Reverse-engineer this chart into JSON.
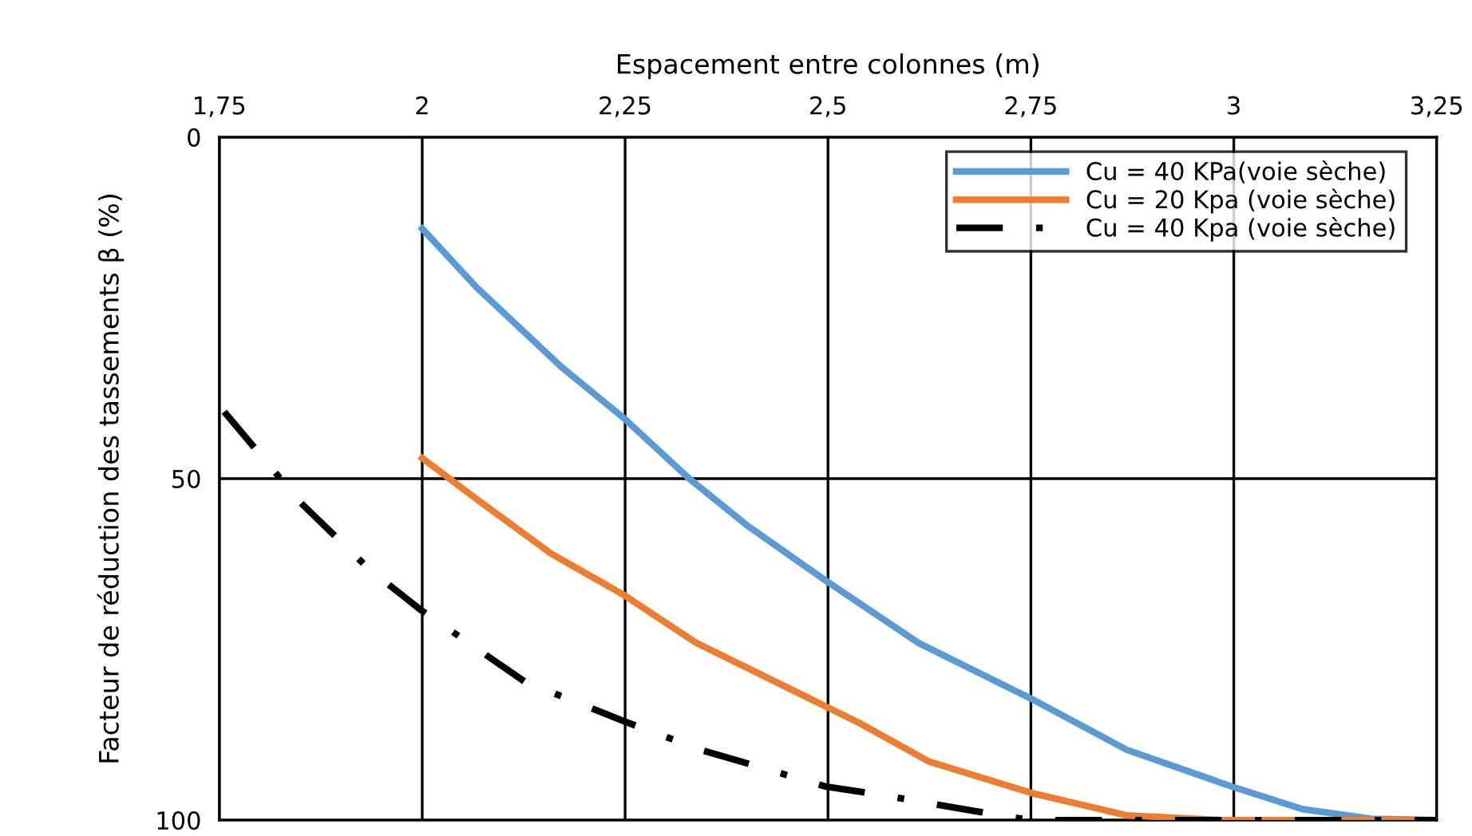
{
  "chart_data": {
    "type": "line",
    "xlabel": "Espacement entre colonnes (m)",
    "ylabel": "Facteur de réduction des tassements β (%)",
    "xlim": [
      1.75,
      3.25
    ],
    "xticks": [
      {
        "value": 1.75,
        "label": "1,75"
      },
      2,
      {
        "value": 2.25,
        "label": "2,25"
      },
      {
        "value": 2.5,
        "label": "2,5"
      },
      {
        "value": 2.75,
        "label": "2,75"
      },
      3,
      {
        "value": 3.25,
        "label": "3,25"
      }
    ],
    "ylim": [
      100,
      0
    ],
    "yticks": [
      0,
      50,
      100
    ],
    "grid": true,
    "legend": "top right",
    "series": [
      {
        "name": "Cu = 40 KPa(voie sèche)",
        "color": "#5b9bd5",
        "line_style": "solid",
        "x": [
          2.0,
          2.067,
          2.171,
          2.248,
          2.329,
          2.402,
          2.498,
          2.612,
          2.75,
          2.868,
          2.998,
          3.085,
          3.169,
          3.248
        ],
        "values": [
          13.4,
          22,
          33.6,
          41.1,
          50,
          57,
          65,
          74.1,
          82.2,
          89.7,
          95.1,
          98.4,
          99.8,
          100
        ]
      },
      {
        "name": "Cu = 20 Kpa (voie sèche)",
        "color": "#ed7d31",
        "line_style": "solid",
        "x": [
          2.0,
          2.067,
          2.159,
          2.248,
          2.337,
          2.498,
          2.539,
          2.624,
          2.75,
          2.868,
          2.986,
          3.25
        ],
        "values": [
          47,
          53,
          61,
          67,
          74,
          83.4,
          85.8,
          91.4,
          96,
          99.3,
          100,
          100
        ]
      },
      {
        "name": "Cu = 40 Kpa (voie sèche)",
        "color": "#000000",
        "line_style": "dashdot",
        "x": [
          1.756,
          1.85,
          1.935,
          1.998,
          2.126,
          2.248,
          2.343,
          2.498,
          2.565,
          2.677,
          2.75,
          3.25
        ],
        "values": [
          40.2,
          53.5,
          63.3,
          69.2,
          79.7,
          85.5,
          89.7,
          95.1,
          96.3,
          98.6,
          100,
          100
        ]
      }
    ]
  }
}
